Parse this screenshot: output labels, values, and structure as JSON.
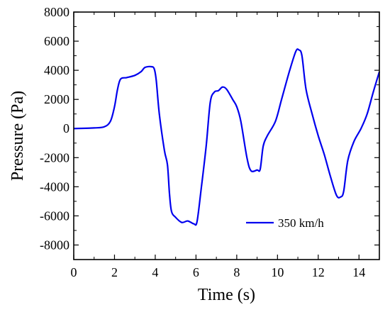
{
  "chart_data": {
    "type": "line",
    "xlabel": "Time (s)",
    "ylabel": "Pressure (Pa)",
    "xlim": [
      0,
      15
    ],
    "ylim": [
      -9000,
      8000
    ],
    "xticks": [
      0,
      2,
      4,
      6,
      8,
      10,
      12,
      14
    ],
    "xtick_labels": [
      "0",
      "2",
      "4",
      "6",
      "8",
      "10",
      "12",
      "14"
    ],
    "yticks": [
      -8000,
      -6000,
      -4000,
      -2000,
      0,
      2000,
      4000,
      6000,
      8000
    ],
    "ytick_labels": [
      "-8000",
      "-6000",
      "-4000",
      "-2000",
      "0",
      "2000",
      "4000",
      "6000",
      "8000"
    ],
    "grid": false,
    "legend_position": "lower-right",
    "series": [
      {
        "name": "350 km/h",
        "color": "#0000ee",
        "x": [
          0,
          1.0,
          1.5,
          1.8,
          2.0,
          2.15,
          2.3,
          2.6,
          3.0,
          3.3,
          3.5,
          3.8,
          3.95,
          4.05,
          4.2,
          4.45,
          4.6,
          4.7,
          4.8,
          5.0,
          5.3,
          5.6,
          5.9,
          6.05,
          6.25,
          6.5,
          6.7,
          6.9,
          7.1,
          7.3,
          7.5,
          7.8,
          8.0,
          8.2,
          8.5,
          8.7,
          9.0,
          9.15,
          9.3,
          9.5,
          9.9,
          10.2,
          10.6,
          10.9,
          11.05,
          11.2,
          11.4,
          11.7,
          12.0,
          12.3,
          12.6,
          12.9,
          13.1,
          13.25,
          13.45,
          13.75,
          14.1,
          14.4,
          14.7,
          15.0
        ],
        "y": [
          0,
          40,
          120,
          500,
          1500,
          2700,
          3400,
          3500,
          3650,
          3900,
          4200,
          4250,
          4100,
          3300,
          1000,
          -1500,
          -2500,
          -4500,
          -5700,
          -6100,
          -6450,
          -6350,
          -6550,
          -6400,
          -4200,
          -1200,
          1800,
          2500,
          2600,
          2850,
          2700,
          2000,
          1500,
          500,
          -2000,
          -2900,
          -2850,
          -2800,
          -1200,
          -500,
          500,
          2000,
          4000,
          5300,
          5400,
          5000,
          2700,
          1000,
          -500,
          -1800,
          -3300,
          -4600,
          -4700,
          -4300,
          -2200,
          -900,
          0,
          1000,
          2500,
          3900
        ]
      }
    ]
  }
}
